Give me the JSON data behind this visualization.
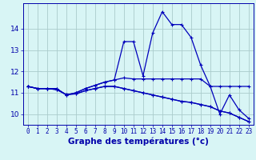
{
  "xlabel": "Graphe des températures (°c)",
  "hours": [
    0,
    1,
    2,
    3,
    4,
    5,
    6,
    7,
    8,
    9,
    10,
    11,
    12,
    13,
    14,
    15,
    16,
    17,
    18,
    19,
    20,
    21,
    22,
    23
  ],
  "series": [
    [
      11.3,
      11.2,
      11.2,
      11.2,
      10.9,
      11.0,
      11.2,
      11.35,
      11.5,
      11.6,
      13.4,
      13.4,
      11.8,
      13.8,
      14.8,
      14.2,
      14.2,
      13.6,
      12.3,
      11.3,
      10.0,
      10.9,
      10.2,
      9.8
    ],
    [
      11.3,
      11.2,
      11.2,
      11.2,
      10.9,
      11.0,
      11.2,
      11.35,
      11.5,
      11.6,
      11.7,
      11.65,
      11.65,
      11.65,
      11.65,
      11.65,
      11.65,
      11.65,
      11.65,
      11.3,
      11.3,
      11.3,
      11.3,
      11.3
    ],
    [
      11.3,
      11.2,
      11.2,
      11.15,
      10.92,
      10.95,
      11.1,
      11.2,
      11.3,
      11.3,
      11.2,
      11.1,
      11.0,
      10.9,
      10.8,
      10.7,
      10.6,
      10.55,
      10.45,
      10.35,
      10.15,
      10.05,
      9.85,
      9.65
    ],
    [
      11.3,
      11.2,
      11.2,
      11.15,
      10.92,
      10.95,
      11.1,
      11.2,
      11.3,
      11.3,
      11.2,
      11.1,
      11.0,
      10.9,
      10.8,
      10.7,
      10.6,
      10.55,
      10.45,
      10.35,
      10.15,
      10.05,
      9.85,
      9.65
    ]
  ],
  "line_color": "#0000bb",
  "marker": "+",
  "markersize": 3,
  "linewidth": 0.9,
  "ylim": [
    9.5,
    15.2
  ],
  "yticks": [
    10,
    11,
    12,
    13,
    14
  ],
  "bg_color": "#d8f5f5",
  "grid_color": "#aacccc",
  "axis_color": "#0000aa",
  "tick_fontsize": 5.5,
  "xlabel_fontsize": 7.5
}
